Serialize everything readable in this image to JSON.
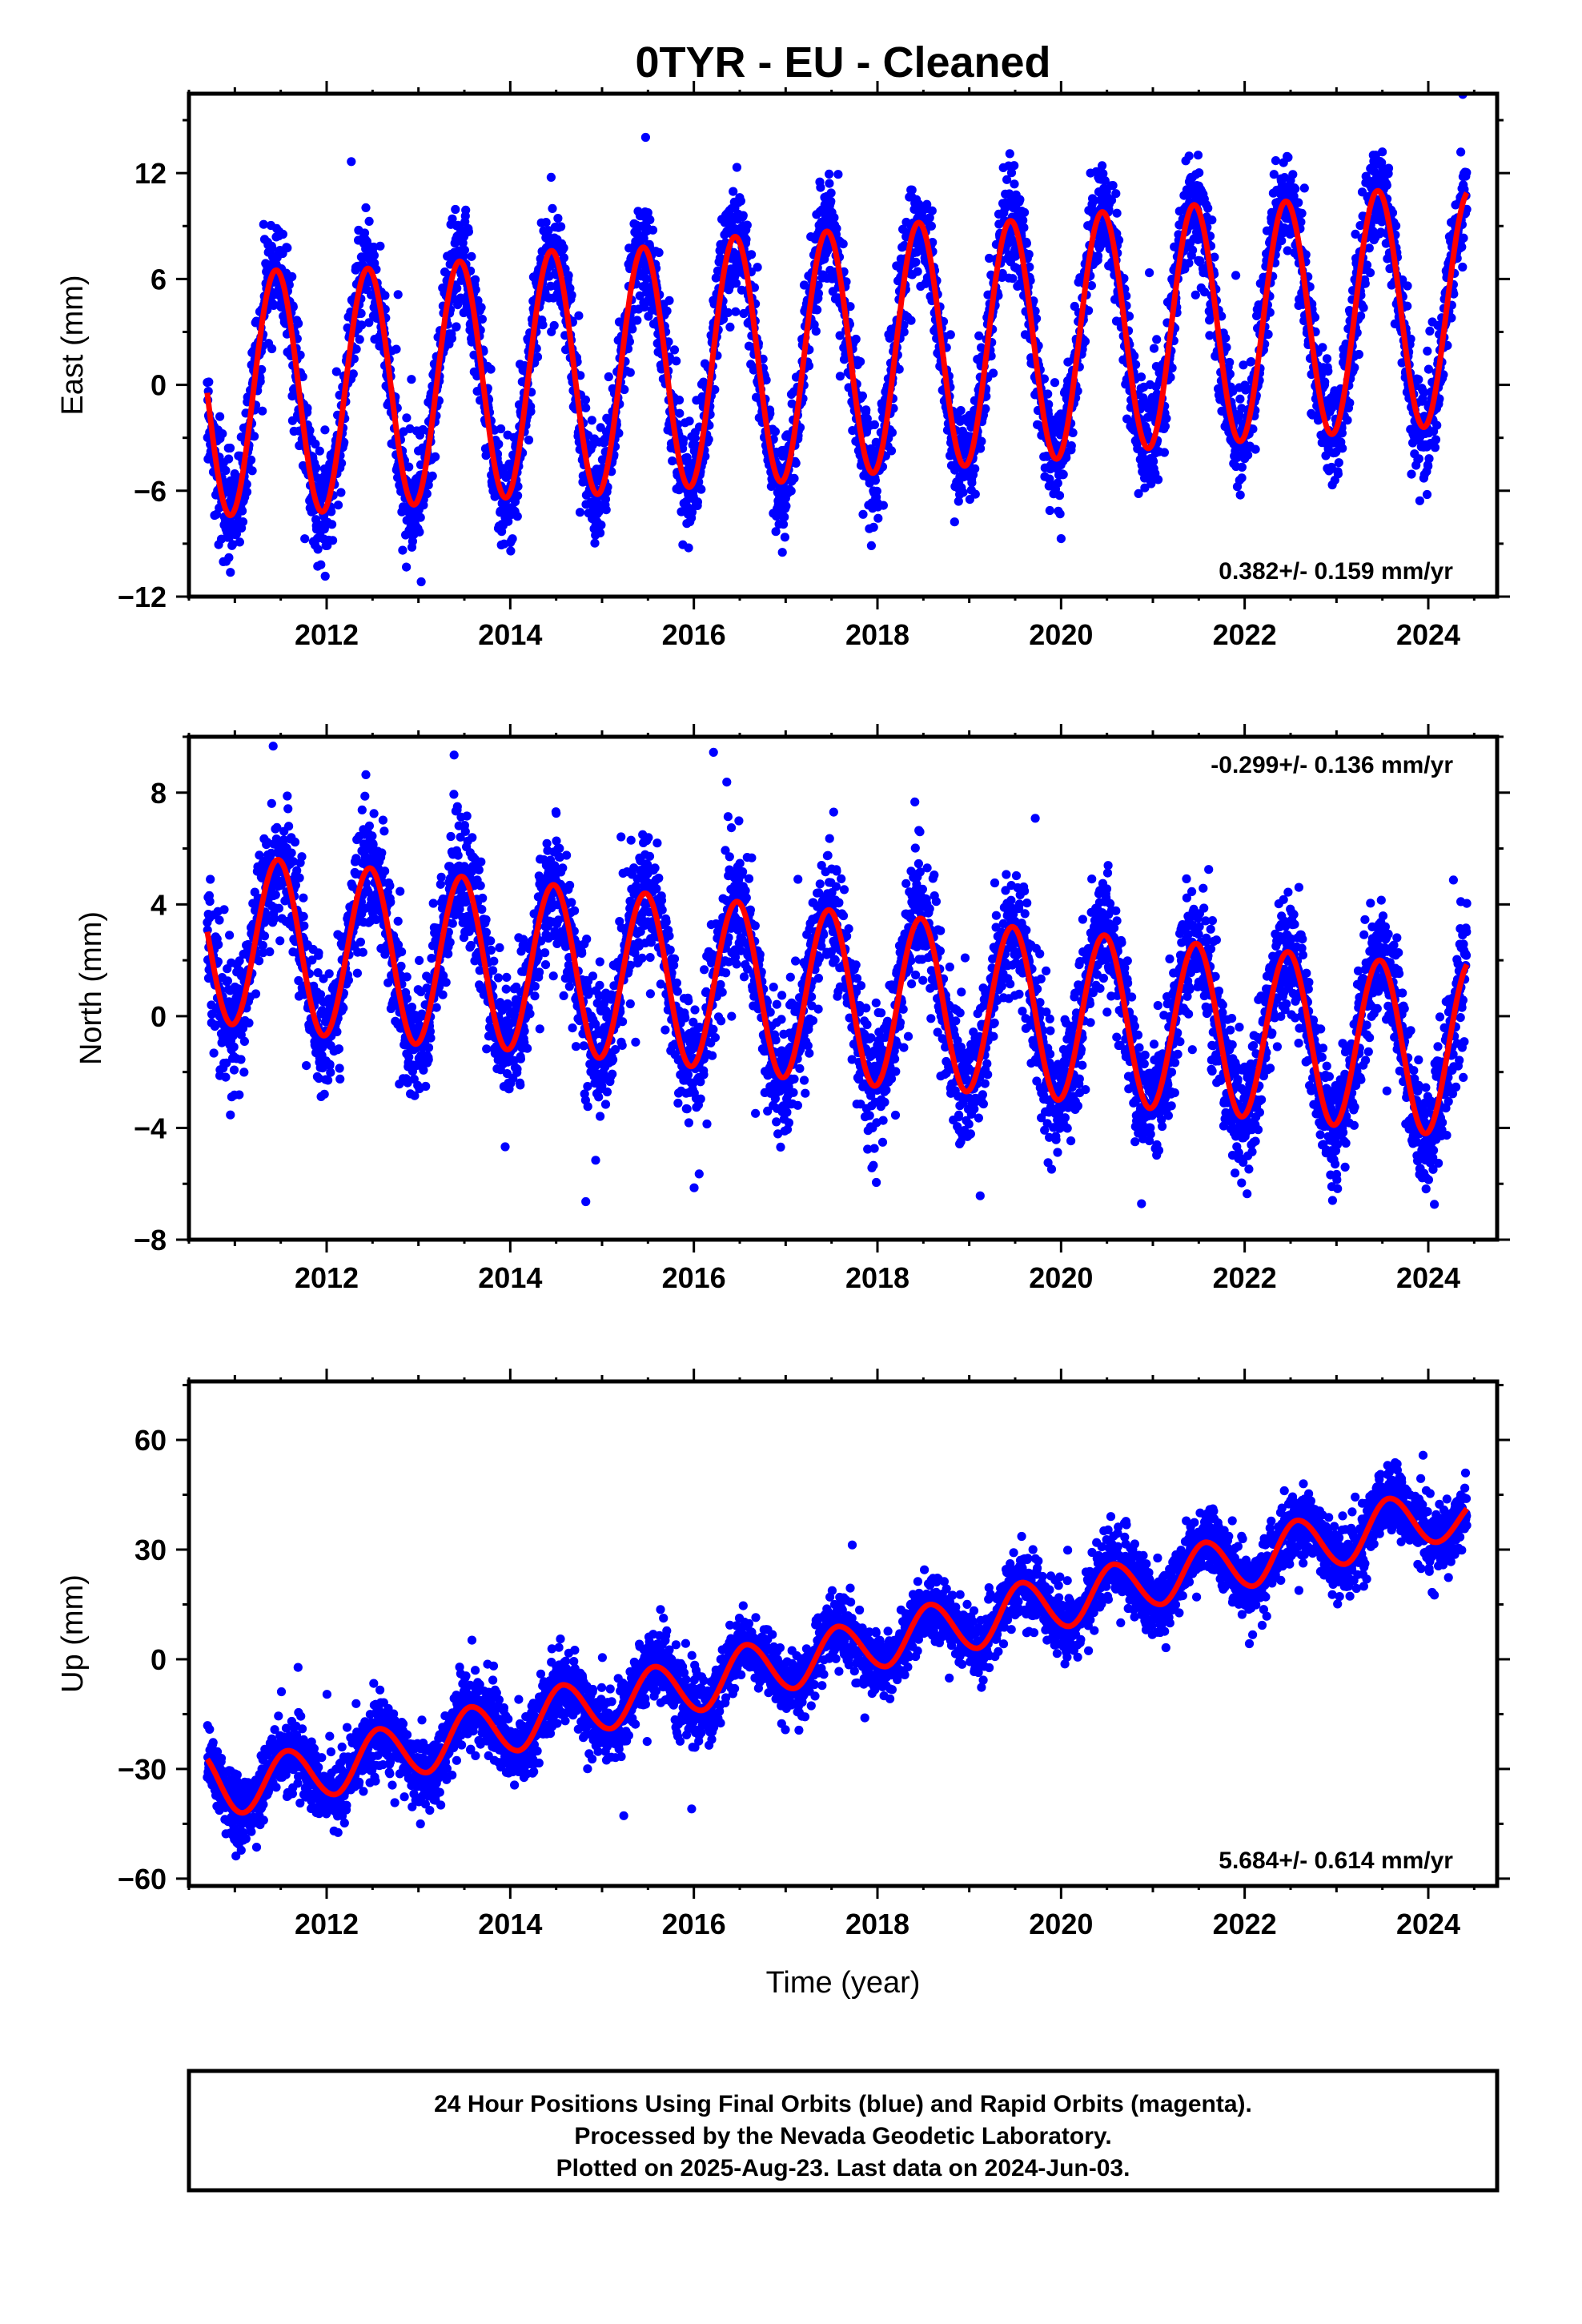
{
  "chart_data": {
    "type": "scatter",
    "title": "0TYR  - EU - Cleaned",
    "xlabel": "Time (year)",
    "xlim": [
      2010.5,
      2024.75
    ],
    "x_ticks": [
      2012,
      2014,
      2016,
      2018,
      2020,
      2022,
      2024
    ],
    "x_tick_labels": [
      "2012",
      "2014",
      "2016",
      "2018",
      "2020",
      "2022",
      "2024"
    ],
    "data_span": [
      2010.7,
      2024.42
    ],
    "series": [
      {
        "name": "blue",
        "color": "#0000ff"
      },
      {
        "name": "model fit",
        "color": "#ff0000"
      }
    ],
    "panels": [
      {
        "ylabel": "East (mm)",
        "ylim": [
          -12,
          16.5
        ],
        "y_ticks": [
          -12,
          -6,
          0,
          6,
          12
        ],
        "y_tick_labels": [
          "−12",
          "−6",
          "0",
          "6",
          "12"
        ],
        "rate": "0.382+/- 0.159 mm/yr",
        "rate_position": "bottom-right",
        "trend_mm_per_yr": 0.382,
        "offset_mm": -1.8,
        "annual_amplitude_mm": 6.8,
        "annual_peak_phase": 0.48,
        "scatter_sd_mm": 1.5,
        "peak_epochs": [
          2011.45,
          2012.45,
          2013.45,
          2014.45,
          2015.45,
          2016.45,
          2017.45,
          2018.45,
          2019.45,
          2020.45,
          2021.45,
          2022.45,
          2023.45
        ],
        "peak_values": [
          6.5,
          6.6,
          7.0,
          7.6,
          7.8,
          8.4,
          8.7,
          9.2,
          9.3,
          9.8,
          10.2,
          10.4,
          11.0
        ],
        "trough_values": [
          -7.4,
          -7.2,
          -6.8,
          -6.4,
          -6.2,
          -5.8,
          -5.5,
          -5.0,
          -4.6,
          -4.2,
          -3.6,
          -3.2,
          -2.8,
          -2.4
        ]
      },
      {
        "ylabel": "North (mm)",
        "ylim": [
          -8,
          10
        ],
        "y_ticks": [
          -8,
          -4,
          0,
          4,
          8
        ],
        "y_tick_labels": [
          "−8",
          "−4",
          "0",
          "4",
          "8"
        ],
        "rate": "-0.299+/- 0.136 mm/yr",
        "rate_position": "top-right",
        "trend_mm_per_yr": -0.299,
        "offset_mm": 1.95,
        "annual_amplitude_mm": 3.0,
        "annual_peak_phase": 0.5,
        "scatter_sd_mm": 1.1,
        "peak_epochs": [
          2011.47,
          2012.47,
          2013.47,
          2014.47,
          2015.47,
          2016.47,
          2017.47,
          2018.47,
          2019.47,
          2020.47,
          2021.47,
          2022.47,
          2023.47
        ],
        "peak_values": [
          5.6,
          5.3,
          5.0,
          4.7,
          4.4,
          4.1,
          3.8,
          3.5,
          3.2,
          2.9,
          2.6,
          2.3,
          2.0
        ],
        "trough_values": [
          -0.3,
          -0.7,
          -1.0,
          -1.2,
          -1.5,
          -1.8,
          -2.2,
          -2.5,
          -2.7,
          -3.0,
          -3.3,
          -3.6,
          -3.9,
          -4.2
        ]
      },
      {
        "ylabel": "Up (mm)",
        "ylim": [
          -62,
          76
        ],
        "y_ticks": [
          -60,
          -30,
          0,
          30,
          60
        ],
        "y_tick_labels": [
          "−60",
          "−30",
          "0",
          "30",
          "60"
        ],
        "rate": "5.684+/- 0.614 mm/yr",
        "rate_position": "bottom-right",
        "trend_mm_per_yr": 5.684,
        "offset_mm": -38.0,
        "annual_amplitude_mm": 5.8,
        "annual_peak_phase": 0.58,
        "scatter_sd_mm": 4.5,
        "peak_epochs": [
          2011.58,
          2012.58,
          2013.58,
          2014.58,
          2015.58,
          2016.58,
          2017.58,
          2018.58,
          2019.58,
          2020.58,
          2021.58,
          2022.58,
          2023.58
        ],
        "peak_values": [
          -25,
          -19,
          -13,
          -7,
          -2,
          4,
          9,
          15,
          21,
          26,
          32,
          38,
          44
        ],
        "trough_values": [
          -42,
          -37,
          -31,
          -25,
          -19,
          -14,
          -8,
          -2,
          3,
          9,
          15,
          20,
          26,
          32
        ]
      }
    ]
  },
  "footer": {
    "line1": "24 Hour Positions Using Final Orbits (blue) and Rapid Orbits (magenta).",
    "line2": "Processed by the Nevada Geodetic Laboratory.",
    "line3": "Plotted on 2025-Aug-23. Last data on 2024-Jun-03."
  }
}
